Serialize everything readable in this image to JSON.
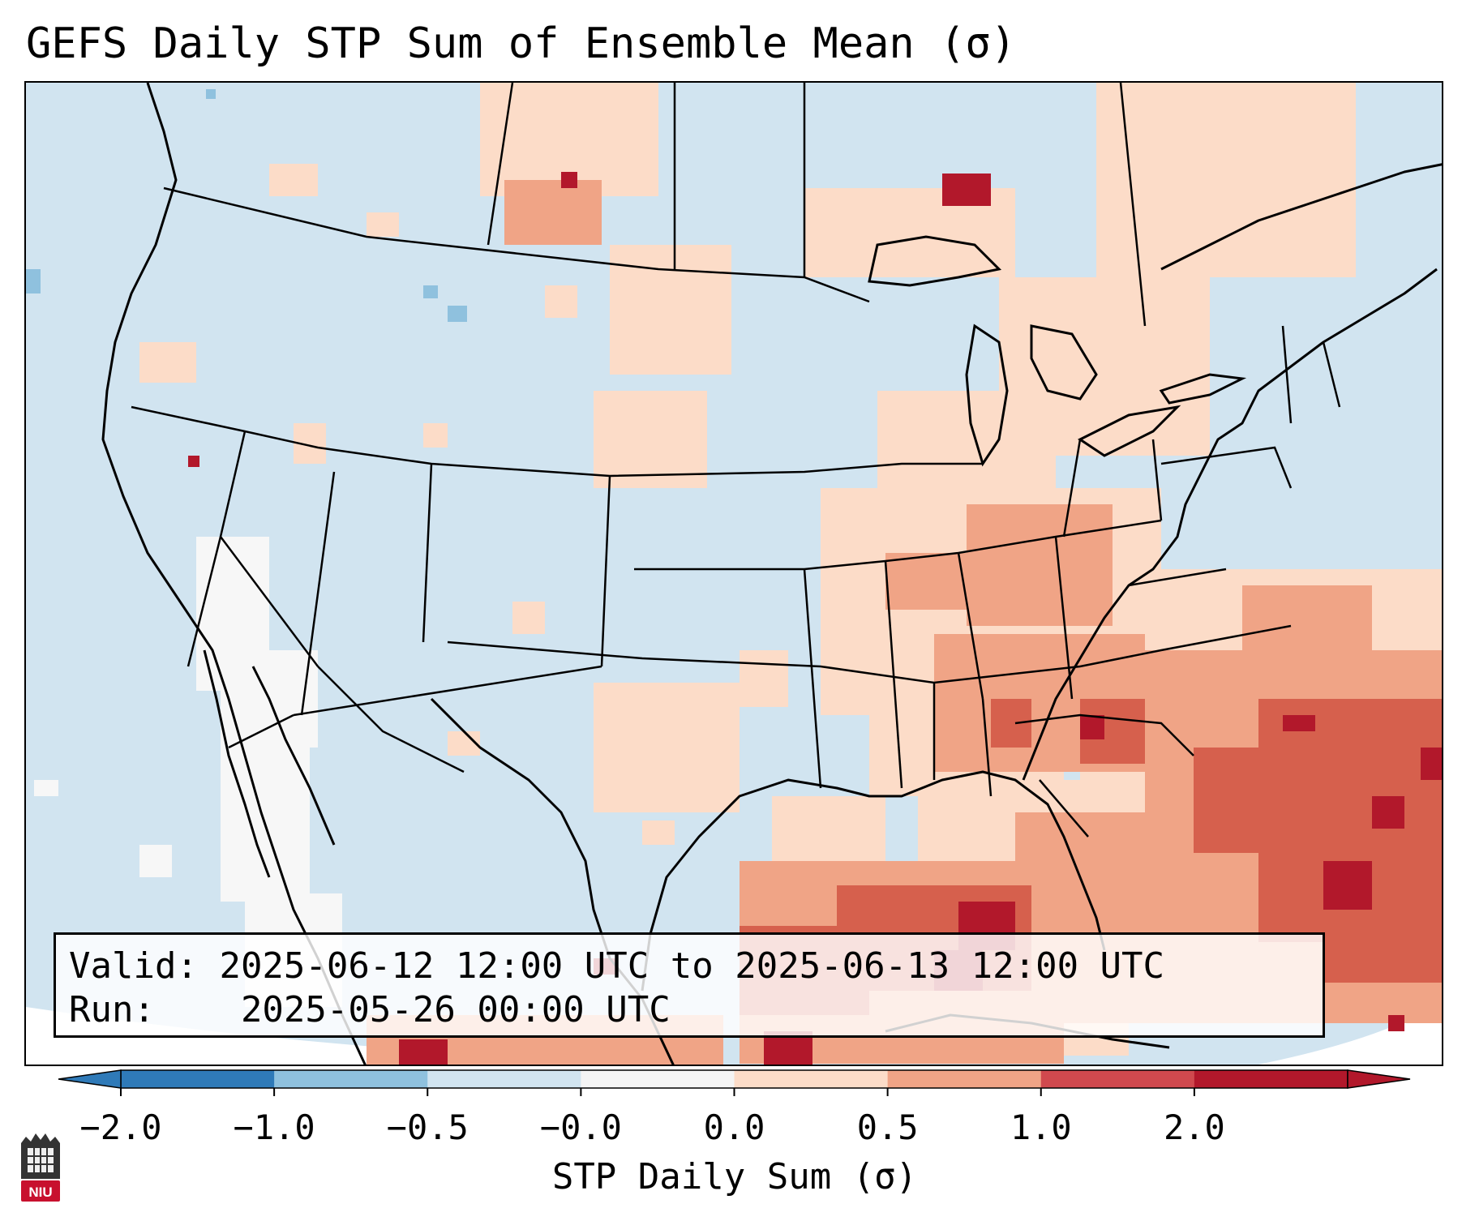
{
  "title": "GEFS Daily STP Sum of Ensemble Mean (σ)",
  "info": {
    "valid_label": "Valid:",
    "valid_value": "2025-06-12 12:00 UTC to 2025-06-13 12:00 UTC",
    "run_label": "Run:",
    "run_value": "2025-05-26 00:00 UTC"
  },
  "colorbar": {
    "title": "STP Daily Sum (σ)",
    "ticks": [
      "−2.0",
      "−1.0",
      "−0.5",
      "−0.0",
      "0.0",
      "0.5",
      "1.0",
      "2.0"
    ],
    "colors": [
      "#2f7ab8",
      "#8fc1de",
      "#d1e4f0",
      "#f4f4f4",
      "#fcdcc8",
      "#f0a486",
      "#d0494e",
      "#b2182b"
    ]
  },
  "logo": {
    "text": "NIU"
  },
  "colors": {
    "ocean_background": "#d1e4f0",
    "light_positive": "#fcdcc8",
    "medium_positive": "#f0a486",
    "strong_positive": "#d6604d",
    "extreme_positive": "#b2182b",
    "slight_negative": "#8fc1de"
  }
}
